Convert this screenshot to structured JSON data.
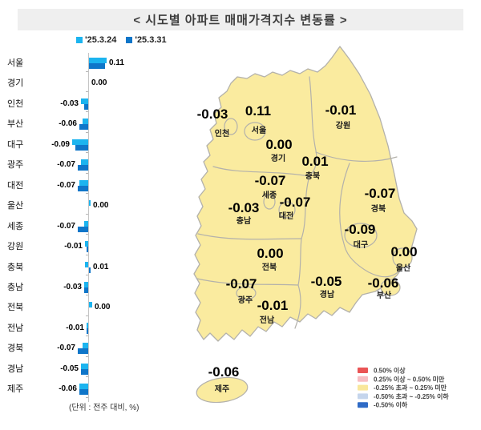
{
  "title": "< 시도별 아파트 매매가격지수 변동률 >",
  "unit_note": "(단위 : 전주 대비, %)",
  "chart_data": {
    "type": "bar",
    "orientation": "horizontal",
    "title": "시도별 아파트 매매가격지수 변동률",
    "unit_note": "(단위 : 전주 대비, %)",
    "xlim": [
      -0.15,
      0.15
    ],
    "legend_position": "top-left",
    "categories": [
      "서울",
      "경기",
      "인천",
      "부산",
      "대구",
      "광주",
      "대전",
      "울산",
      "세종",
      "강원",
      "충북",
      "충남",
      "전북",
      "전남",
      "경북",
      "경남",
      "제주"
    ],
    "series": [
      {
        "name": "'25.3.24",
        "color": "#1CB4EF",
        "values": [
          0.12,
          0.0,
          -0.05,
          -0.04,
          -0.11,
          -0.05,
          -0.06,
          0.01,
          -0.03,
          -0.02,
          -0.02,
          -0.03,
          0.02,
          -0.01,
          -0.04,
          -0.05,
          -0.06
        ]
      },
      {
        "name": "'25.3.31",
        "color": "#0F76C9",
        "values": [
          0.11,
          0.0,
          -0.03,
          -0.06,
          -0.09,
          -0.07,
          -0.07,
          0.0,
          -0.07,
          -0.01,
          0.01,
          -0.03,
          0.0,
          -0.01,
          -0.07,
          -0.05,
          -0.06
        ]
      }
    ],
    "value_labels": [
      "0.11",
      "0.00",
      "-0.03",
      "-0.06",
      "-0.09",
      "-0.07",
      "-0.07",
      "0.00",
      "-0.07",
      "-0.01",
      "0.01",
      "-0.03",
      "0.00",
      "-0.01",
      "-0.07",
      "-0.05",
      "-0.06"
    ]
  },
  "map": {
    "fill_color": "#FAEB9F",
    "border_color": "#B3B1AB",
    "regions": [
      {
        "name": "서울",
        "value": "0.11"
      },
      {
        "name": "인천",
        "value": "-0.03"
      },
      {
        "name": "경기",
        "value": "0.00"
      },
      {
        "name": "강원",
        "value": "-0.01"
      },
      {
        "name": "충북",
        "value": "0.01"
      },
      {
        "name": "세종",
        "value": "-0.07"
      },
      {
        "name": "대전",
        "value": "-0.07"
      },
      {
        "name": "충남",
        "value": "-0.03"
      },
      {
        "name": "경북",
        "value": "-0.07"
      },
      {
        "name": "대구",
        "value": "-0.09"
      },
      {
        "name": "전북",
        "value": "0.00"
      },
      {
        "name": "울산",
        "value": "0.00"
      },
      {
        "name": "경남",
        "value": "-0.05"
      },
      {
        "name": "부산",
        "value": "-0.06"
      },
      {
        "name": "광주",
        "value": "-0.07"
      },
      {
        "name": "전남",
        "value": "-0.01"
      },
      {
        "name": "제주",
        "value": "-0.06"
      }
    ],
    "legend": [
      {
        "label": "0.50% 이상",
        "color": "#EA5455"
      },
      {
        "label": "0.25% 이상 ~ 0.50% 미만",
        "color": "#F7BEC3"
      },
      {
        "label": "-0.25% 초과 ~ 0.25% 미만",
        "color": "#F9E79B"
      },
      {
        "label": "-0.50% 초과 ~ -0.25% 이하",
        "color": "#C5D5EC"
      },
      {
        "label": "-0.50% 이하",
        "color": "#2F6BC6"
      }
    ]
  }
}
